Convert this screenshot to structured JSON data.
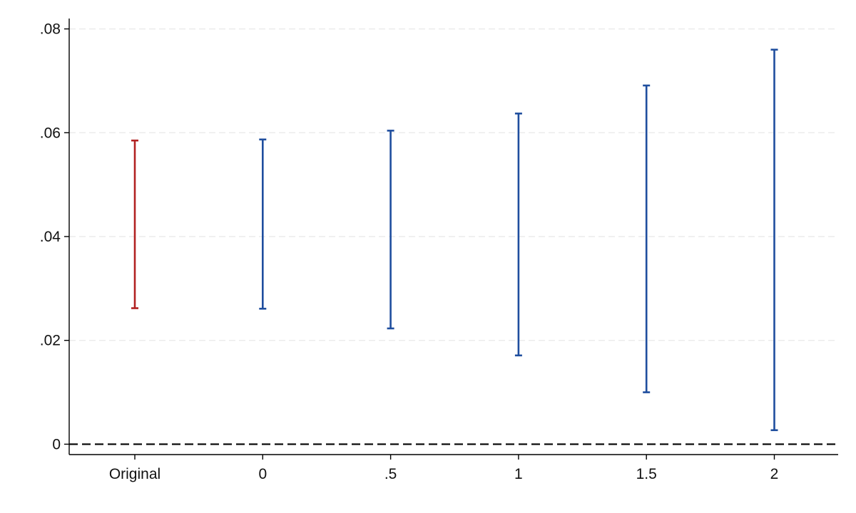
{
  "chart_data": {
    "type": "errorbar",
    "title": "",
    "xlabel": "",
    "ylabel": "",
    "ylim": [
      -0.002,
      0.082
    ],
    "y_ticks": [
      {
        "value": 0,
        "label": "0"
      },
      {
        "value": 0.02,
        "label": ".02"
      },
      {
        "value": 0.04,
        "label": ".04"
      },
      {
        "value": 0.06,
        "label": ".06"
      },
      {
        "value": 0.08,
        "label": ".08"
      }
    ],
    "grid": true,
    "reference_line": {
      "y": 0,
      "style": "dashed",
      "color": "#000000"
    },
    "categories": [
      "Original",
      "0",
      ".5",
      "1",
      "1.5",
      "2"
    ],
    "intervals": [
      {
        "category": "Original",
        "low": 0.0262,
        "high": 0.0585,
        "color": "#b22222"
      },
      {
        "category": "0",
        "low": 0.0261,
        "high": 0.0587,
        "color": "#1f4e9e"
      },
      {
        "category": ".5",
        "low": 0.0223,
        "high": 0.0604,
        "color": "#1f4e9e"
      },
      {
        "category": "1",
        "low": 0.0171,
        "high": 0.0637,
        "color": "#1f4e9e"
      },
      {
        "category": "1.5",
        "low": 0.01,
        "high": 0.0691,
        "color": "#1f4e9e"
      },
      {
        "category": "2",
        "low": 0.0027,
        "high": 0.076,
        "color": "#1f4e9e"
      }
    ]
  }
}
